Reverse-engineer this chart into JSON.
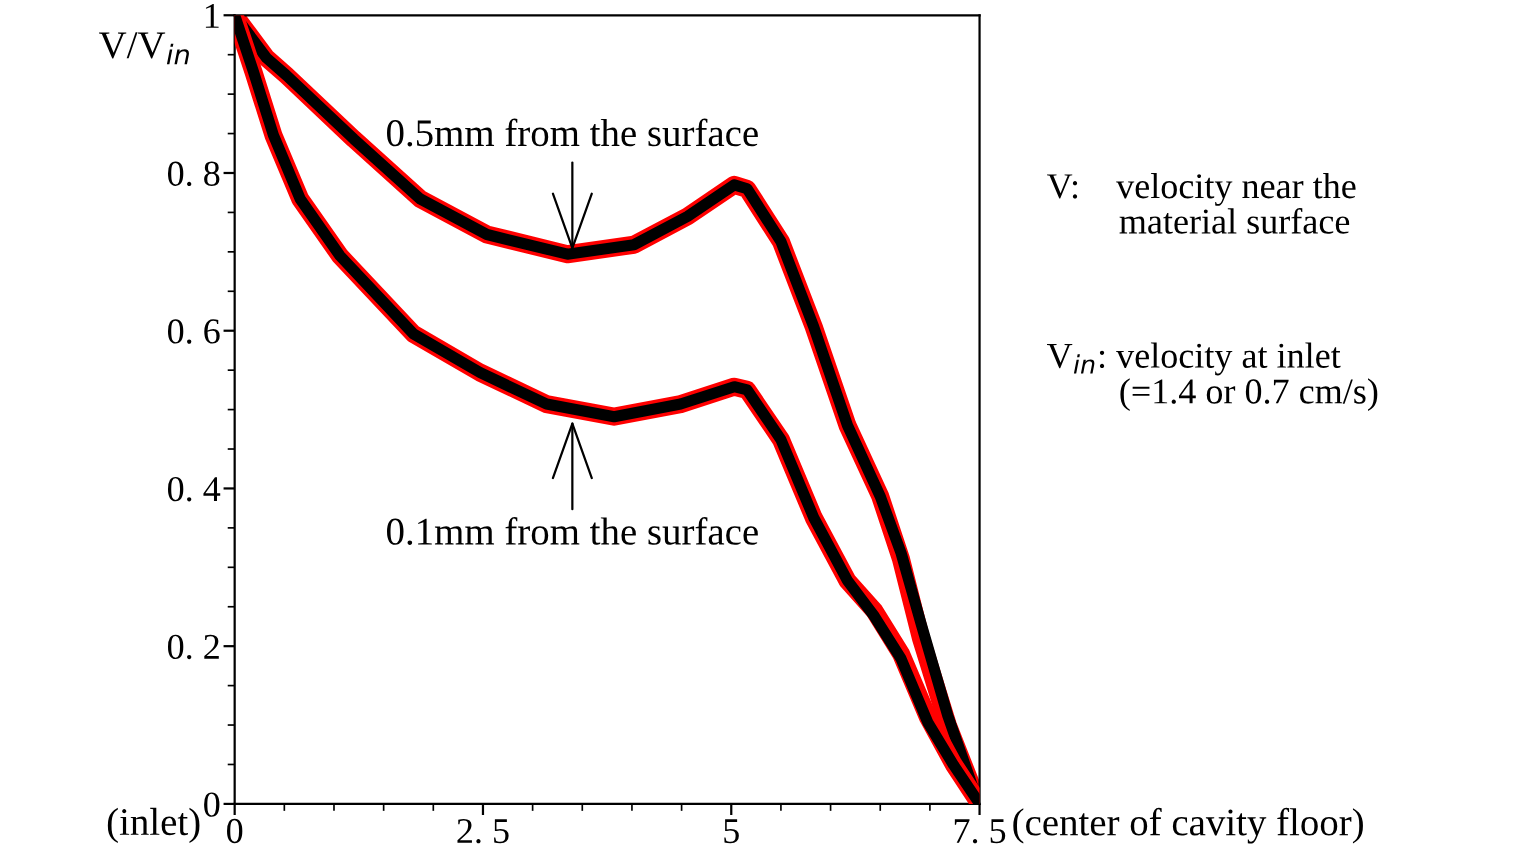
{
  "chart_data": {
    "type": "line",
    "xlabel": "(center of cavity floor)",
    "ylabel": "V/V$_{in}$",
    "xlim": [
      0,
      7.5
    ],
    "ylim": [
      0,
      1
    ],
    "xticks": [
      0,
      {
        "value": 2.5,
        "label": "2. 5"
      },
      5,
      {
        "value": 7.5,
        "label": "7. 5"
      }
    ],
    "yticks": [
      0,
      {
        "value": 0.2,
        "label": "0. 2"
      },
      {
        "value": 0.4,
        "label": "0. 4"
      },
      {
        "value": 0.6,
        "label": "0. 6"
      },
      {
        "value": 0.8,
        "label": "0. 8"
      },
      1
    ],
    "grid": false,
    "legend": false,
    "marker": "none",
    "line_style": "solid",
    "series": [
      {
        "color": "#ff0000",
        "x": [
          0,
          0.32,
          0.52,
          1.2,
          1.87,
          2.54,
          3.35,
          4.02,
          4.56,
          5.03,
          5.16,
          5.5,
          5.83,
          6.17,
          6.5,
          6.71,
          6.91,
          7.18,
          7.48
        ],
        "values": [
          1,
          0.946,
          0.924,
          0.843,
          0.767,
          0.722,
          0.697,
          0.709,
          0.745,
          0.785,
          0.78,
          0.713,
          0.605,
          0.48,
          0.39,
          0.31,
          0.21,
          0.1,
          0.004
        ]
      },
      {
        "color": "#000000",
        "x": [
          0,
          0.32,
          0.52,
          1.2,
          1.87,
          2.54,
          3.35,
          4.02,
          4.56,
          5.03,
          5.16,
          5.5,
          5.83,
          6.17,
          6.5,
          6.71,
          6.91,
          7.18,
          7.48
        ],
        "values": [
          1,
          0.946,
          0.924,
          0.843,
          0.767,
          0.722,
          0.697,
          0.709,
          0.745,
          0.785,
          0.78,
          0.713,
          0.605,
          0.48,
          0.39,
          0.318,
          0.229,
          0.112,
          0.004
        ]
      },
      {
        "color": "#ff0000",
        "x": [
          0,
          0.19,
          0.39,
          0.66,
          1.06,
          1.8,
          2.47,
          3.14,
          3.82,
          4.49,
          5.03,
          5.16,
          5.5,
          5.83,
          6.17,
          6.44,
          6.71,
          6.98,
          7.24,
          7.48
        ],
        "values": [
          1,
          0.928,
          0.848,
          0.767,
          0.695,
          0.596,
          0.547,
          0.507,
          0.491,
          0.507,
          0.529,
          0.525,
          0.462,
          0.363,
          0.283,
          0.245,
          0.19,
          0.11,
          0.05,
          0.004
        ]
      },
      {
        "color": "#000000",
        "x": [
          0,
          0.19,
          0.39,
          0.66,
          1.06,
          1.8,
          2.47,
          3.14,
          3.82,
          4.49,
          5.03,
          5.16,
          5.5,
          5.83,
          6.17,
          6.44,
          6.71,
          6.98,
          7.24,
          7.48
        ],
        "values": [
          1,
          0.928,
          0.848,
          0.767,
          0.695,
          0.596,
          0.547,
          0.507,
          0.491,
          0.507,
          0.529,
          0.525,
          0.462,
          0.363,
          0.283,
          0.238,
          0.184,
          0.103,
          0.049,
          0.004
        ]
      }
    ],
    "annotations": [
      {
        "text": "0.5mm from the surface",
        "x": 3.4,
        "y": 0.697
      },
      {
        "text": "0.1mm from the surface",
        "x": 3.4,
        "y": 0.49
      },
      "(inlet)",
      "V:    velocity near the\n        material surface",
      "V$_{in}$: velocity at inlet\n        (=1.4 or 0.7 cm/s)"
    ]
  }
}
